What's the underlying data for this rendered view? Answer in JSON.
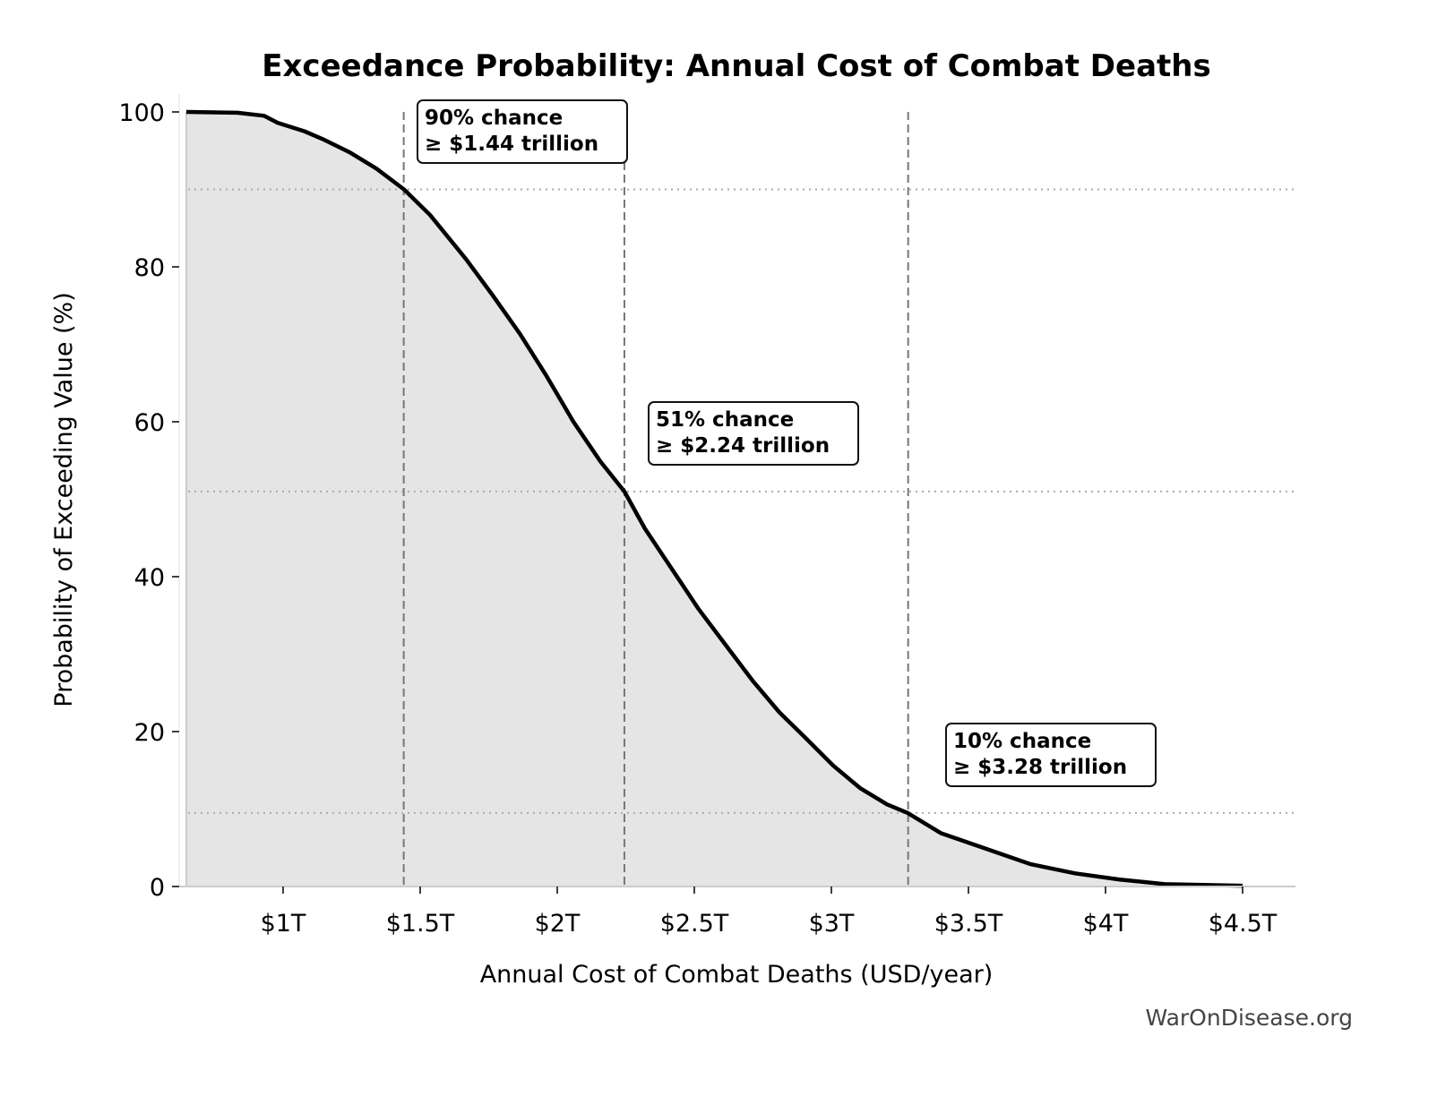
{
  "chart_data": {
    "type": "area",
    "title": "Exceedance Probability: Annual Cost of Combat Deaths",
    "xlabel": "Annual Cost of Combat Deaths (USD/year)",
    "ylabel": "Probability of Exceeding Value (%)",
    "xlim": [
      0.62,
      4.69
    ],
    "ylim": [
      0,
      100
    ],
    "x_unit": "trillion USD",
    "x_ticks": [
      {
        "value": 1,
        "label": "$1T"
      },
      {
        "value": 1.5,
        "label": "$1.5T"
      },
      {
        "value": 2,
        "label": "$2T"
      },
      {
        "value": 2.5,
        "label": "$2.5T"
      },
      {
        "value": 3,
        "label": "$3T"
      },
      {
        "value": 3.5,
        "label": "$3.5T"
      },
      {
        "value": 4,
        "label": "$4T"
      },
      {
        "value": 4.5,
        "label": "$4.5T"
      }
    ],
    "y_ticks": [
      {
        "value": 0,
        "label": "0"
      },
      {
        "value": 20,
        "label": "20"
      },
      {
        "value": 40,
        "label": "40"
      },
      {
        "value": 60,
        "label": "60"
      },
      {
        "value": 80,
        "label": "80"
      },
      {
        "value": 100,
        "label": "100"
      }
    ],
    "grid": false,
    "series": [
      {
        "color": "#000000",
        "fill": "#e5e5e5",
        "x": [
          0.647,
          0.833,
          0.931,
          0.98,
          1.078,
          1.144,
          1.242,
          1.34,
          1.441,
          1.536,
          1.667,
          1.765,
          1.863,
          1.961,
          2.059,
          2.157,
          2.245,
          2.32,
          2.418,
          2.516,
          2.614,
          2.712,
          2.81,
          2.908,
          3.007,
          3.105,
          3.203,
          3.278,
          3.399,
          3.562,
          3.725,
          3.889,
          4.052,
          4.216,
          4.5
        ],
        "y": [
          100,
          99.9,
          99.5,
          98.6,
          97.5,
          96.5,
          94.8,
          92.7,
          90,
          86.7,
          81,
          76.3,
          71.4,
          65.9,
          60,
          54.9,
          51,
          46.2,
          41,
          35.8,
          31.2,
          26.6,
          22.5,
          19.1,
          15.6,
          12.7,
          10.6,
          9.5,
          6.9,
          4.9,
          2.9,
          1.7,
          0.9,
          0.3,
          0.1
        ]
      }
    ],
    "reference_lines": [
      {
        "x": 1.44,
        "y": 90,
        "label_line1": "90% chance",
        "label_line2": "≥ $1.44 trillion"
      },
      {
        "x": 2.245,
        "y": 51,
        "label_line1": "51% chance",
        "label_line2": "≥ $2.24 trillion"
      },
      {
        "x": 3.28,
        "y": 9.5,
        "label_line1": "10% chance",
        "label_line2": "≥ $3.28 trillion"
      }
    ],
    "watermark": "WarOnDisease.org"
  }
}
